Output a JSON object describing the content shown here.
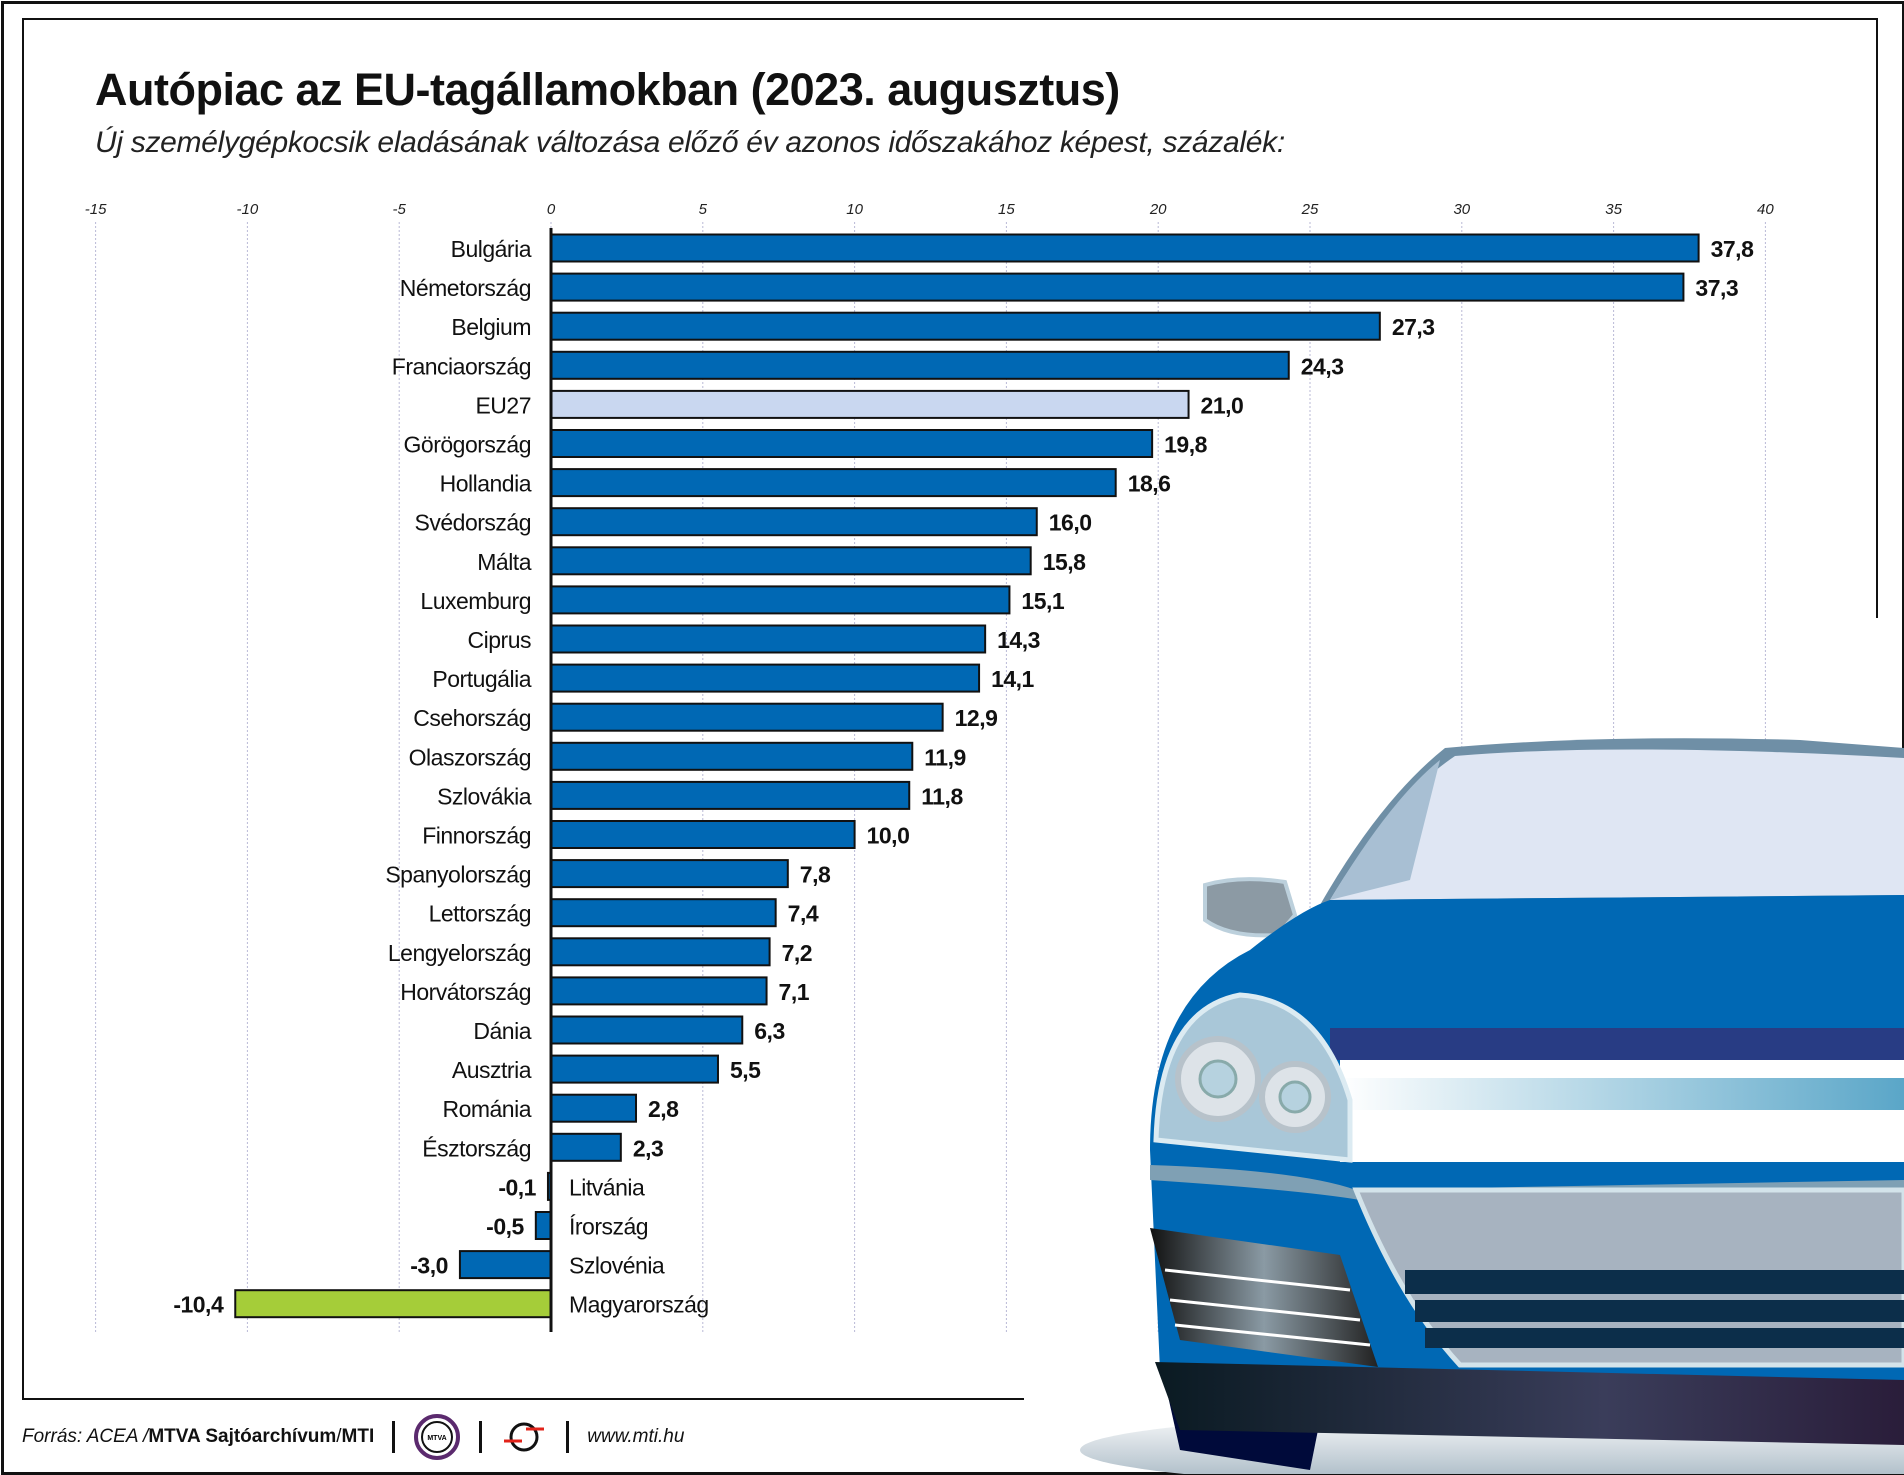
{
  "header": {
    "title": "Autópiac az EU-tagállamokban (2023. augusztus)",
    "subtitle": "Új személygépkocsik eladásának változása előző év azonos időszakához képest, százalék:"
  },
  "chart_data": {
    "type": "bar",
    "orientation": "horizontal",
    "title": "Autópiac az EU-tagállamokban (2023. augusztus)",
    "subtitle": "Új személygépkocsik eladásának változása előző év azonos időszakához képest, százalék:",
    "xlim": [
      -15,
      40
    ],
    "xticks": [
      -15,
      -10,
      -5,
      0,
      5,
      10,
      15,
      20,
      25,
      30,
      35,
      40
    ],
    "grid": true,
    "categories": [
      "Bulgária",
      "Németország",
      "Belgium",
      "Franciaország",
      "EU27",
      "Görögország",
      "Hollandia",
      "Svédország",
      "Málta",
      "Luxemburg",
      "Ciprus",
      "Portugália",
      "Csehország",
      "Olaszország",
      "Szlovákia",
      "Finnország",
      "Spanyolország",
      "Lettország",
      "Lengyelország",
      "Horvátország",
      "Dánia",
      "Ausztria",
      "Románia",
      "Észtország",
      "Litvánia",
      "Írország",
      "Szlovénia",
      "Magyarország"
    ],
    "values": [
      37.8,
      37.3,
      27.3,
      24.3,
      21.0,
      19.8,
      18.6,
      16.0,
      15.8,
      15.1,
      14.3,
      14.1,
      12.9,
      11.9,
      11.8,
      10.0,
      7.8,
      7.4,
      7.2,
      7.1,
      6.3,
      5.5,
      2.8,
      2.3,
      -0.1,
      -0.5,
      -3.0,
      -10.4
    ],
    "value_labels": [
      "37,8",
      "37,3",
      "27,3",
      "24,3",
      "21,0",
      "19,8",
      "18,6",
      "16,0",
      "15,8",
      "15,1",
      "14,3",
      "14,1",
      "12,9",
      "11,9",
      "11,8",
      "10,0",
      "7,8",
      "7,4",
      "7,2",
      "7,1",
      "6,3",
      "5,5",
      "2,8",
      "2,3",
      "-0,1",
      "-0,5",
      "-3,0",
      "-10,4"
    ],
    "colors": {
      "default": "#0068b4",
      "EU27": "#c9d7f0",
      "Magyarország": "#a5cd39",
      "grid": "#b9b9d6"
    }
  },
  "footer": {
    "source_prefix": "Forrás: ACEA / ",
    "source_bold": "MTVA Sajtóarchívum",
    "source_sep": " / ",
    "source_mti": "MTI",
    "mtva_logo_text": "MTVA",
    "website": "www.mti.hu"
  }
}
